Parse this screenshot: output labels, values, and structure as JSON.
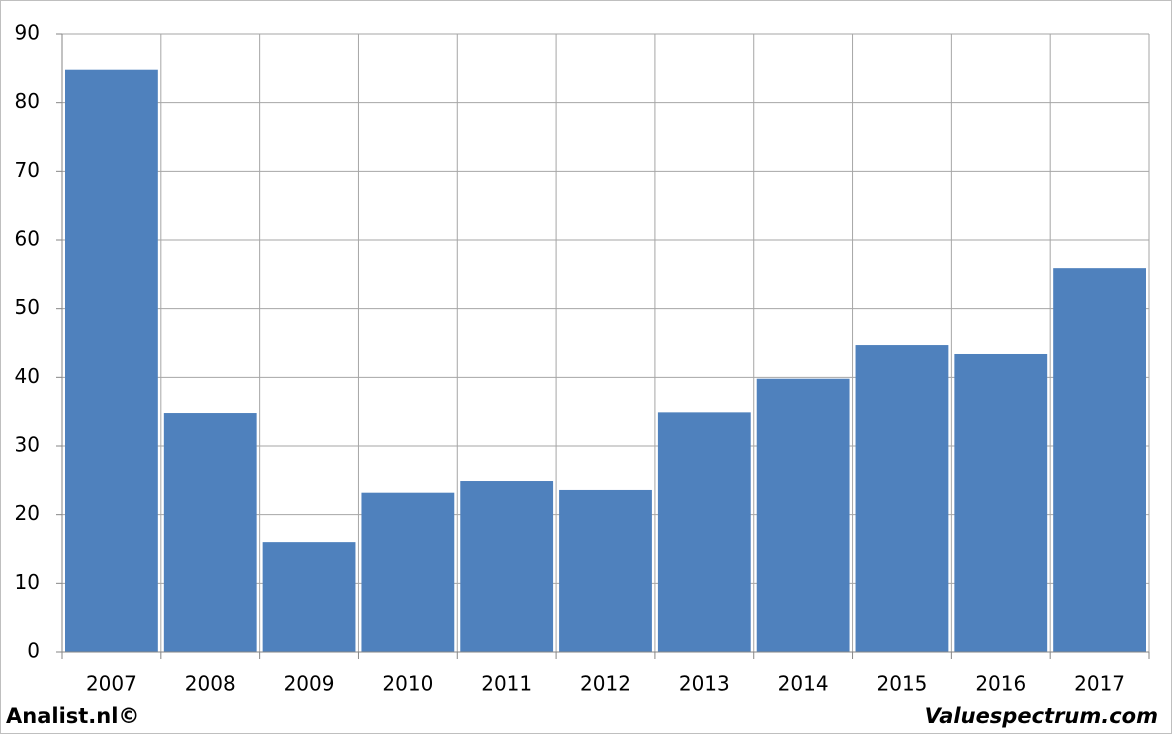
{
  "chart_data": {
    "type": "bar",
    "categories": [
      "2007",
      "2008",
      "2009",
      "2010",
      "2011",
      "2012",
      "2013",
      "2014",
      "2015",
      "2016",
      "2017"
    ],
    "values": [
      84.8,
      34.8,
      16.0,
      23.2,
      24.9,
      23.6,
      34.9,
      39.8,
      44.7,
      43.4,
      55.9
    ],
    "color": "#4f81bd",
    "ylim": [
      0,
      90
    ],
    "yticks": [
      0,
      10,
      20,
      30,
      40,
      50,
      60,
      70,
      80,
      90
    ],
    "grid": true,
    "footer_left": "Analist.nl©",
    "footer_right": "Valuespectrum.com"
  }
}
